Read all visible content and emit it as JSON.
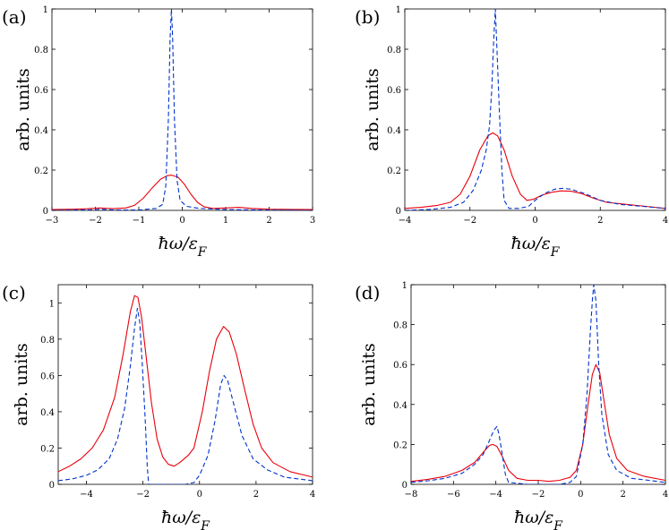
{
  "chart_data": [
    {
      "type": "line",
      "panel_label": "(a)",
      "xlabel": "ħω/ε_F",
      "ylabel": "arb. units",
      "xlim": [
        -3,
        3
      ],
      "ylim": [
        0,
        1
      ],
      "xticks": [
        "-3",
        "-2",
        "-1",
        "0",
        "1",
        "2",
        "3"
      ],
      "yticks": [
        "0",
        "0.2",
        "0.4",
        "0.6",
        "0.8",
        "1"
      ],
      "series": [
        {
          "style": "solid",
          "color": "#e8000b",
          "points": [
            [
              -3,
              0.004
            ],
            [
              -2.5,
              0.006
            ],
            [
              -2.2,
              0.008
            ],
            [
              -1.9,
              0.012
            ],
            [
              -1.6,
              0.009
            ],
            [
              -1.3,
              0.012
            ],
            [
              -1.1,
              0.025
            ],
            [
              -0.9,
              0.06
            ],
            [
              -0.7,
              0.11
            ],
            [
              -0.5,
              0.155
            ],
            [
              -0.35,
              0.172
            ],
            [
              -0.25,
              0.175
            ],
            [
              -0.1,
              0.165
            ],
            [
              0.05,
              0.13
            ],
            [
              0.2,
              0.08
            ],
            [
              0.35,
              0.04
            ],
            [
              0.5,
              0.018
            ],
            [
              0.7,
              0.01
            ],
            [
              1.0,
              0.012
            ],
            [
              1.3,
              0.015
            ],
            [
              1.6,
              0.01
            ],
            [
              2.0,
              0.006
            ],
            [
              2.5,
              0.005
            ],
            [
              3,
              0.004
            ]
          ]
        },
        {
          "style": "dashed",
          "color": "#0033cc",
          "points": [
            [
              -3,
              0.0
            ],
            [
              -2,
              0.003
            ],
            [
              -1.9,
              0.006
            ],
            [
              -1.5,
              0.002
            ],
            [
              -1,
              0.002
            ],
            [
              -0.6,
              0.01
            ],
            [
              -0.45,
              0.03
            ],
            [
              -0.38,
              0.12
            ],
            [
              -0.32,
              0.45
            ],
            [
              -0.28,
              0.85
            ],
            [
              -0.25,
              1.0
            ],
            [
              -0.22,
              0.85
            ],
            [
              -0.18,
              0.45
            ],
            [
              -0.12,
              0.15
            ],
            [
              -0.05,
              0.05
            ],
            [
              0.1,
              0.02
            ],
            [
              0.4,
              0.01
            ],
            [
              1,
              0.004
            ],
            [
              2,
              0.002
            ],
            [
              3,
              0.0
            ]
          ]
        }
      ]
    },
    {
      "type": "line",
      "panel_label": "(b)",
      "xlabel": "ħω/ε_F",
      "ylabel": "arb. units",
      "xlim": [
        -4,
        4
      ],
      "ylim": [
        0,
        1
      ],
      "xticks": [
        "-4",
        "-2",
        "0",
        "2",
        "4"
      ],
      "yticks": [
        "0",
        "0.2",
        "0.4",
        "0.6",
        "0.8",
        "1"
      ],
      "series": [
        {
          "style": "solid",
          "color": "#e8000b",
          "points": [
            [
              -4,
              0.01
            ],
            [
              -3.5,
              0.015
            ],
            [
              -3,
              0.025
            ],
            [
              -2.6,
              0.04
            ],
            [
              -2.3,
              0.08
            ],
            [
              -2,
              0.17
            ],
            [
              -1.7,
              0.3
            ],
            [
              -1.45,
              0.37
            ],
            [
              -1.3,
              0.385
            ],
            [
              -1.15,
              0.37
            ],
            [
              -0.95,
              0.3
            ],
            [
              -0.7,
              0.17
            ],
            [
              -0.45,
              0.08
            ],
            [
              -0.25,
              0.05
            ],
            [
              -0.05,
              0.055
            ],
            [
              0.2,
              0.075
            ],
            [
              0.5,
              0.09
            ],
            [
              0.8,
              0.097
            ],
            [
              1.1,
              0.095
            ],
            [
              1.4,
              0.085
            ],
            [
              1.8,
              0.06
            ],
            [
              2.2,
              0.04
            ],
            [
              2.8,
              0.03
            ],
            [
              3.4,
              0.02
            ],
            [
              4,
              0.01
            ]
          ]
        },
        {
          "style": "dashed",
          "color": "#0033cc",
          "points": [
            [
              -4,
              0.0
            ],
            [
              -3.2,
              0.005
            ],
            [
              -2.6,
              0.015
            ],
            [
              -2.2,
              0.04
            ],
            [
              -1.9,
              0.1
            ],
            [
              -1.65,
              0.2
            ],
            [
              -1.5,
              0.3
            ],
            [
              -1.4,
              0.42
            ],
            [
              -1.33,
              0.6
            ],
            [
              -1.27,
              0.85
            ],
            [
              -1.22,
              1.0
            ],
            [
              -1.17,
              0.8
            ],
            [
              -1.1,
              0.5
            ],
            [
              -1.02,
              0.2
            ],
            [
              -0.95,
              0.05
            ],
            [
              -0.8,
              0.01
            ],
            [
              -0.5,
              0.01
            ],
            [
              -0.2,
              0.02
            ],
            [
              0,
              0.05
            ],
            [
              0.3,
              0.085
            ],
            [
              0.6,
              0.105
            ],
            [
              0.85,
              0.11
            ],
            [
              1.1,
              0.105
            ],
            [
              1.5,
              0.085
            ],
            [
              2,
              0.05
            ],
            [
              2.6,
              0.03
            ],
            [
              3.3,
              0.02
            ],
            [
              4,
              0.01
            ]
          ]
        }
      ]
    },
    {
      "type": "line",
      "panel_label": "(c)",
      "xlabel": "ħω/ε_F",
      "ylabel": "arb. units",
      "xlim": [
        -5,
        4
      ],
      "ylim": [
        0,
        1.1
      ],
      "xticks": [
        "-4",
        "-2",
        "0",
        "2",
        "4"
      ],
      "yticks": [
        "0",
        "0.2",
        "0.4",
        "0.6",
        "0.8",
        "1"
      ],
      "series": [
        {
          "style": "solid",
          "color": "#e8000b",
          "points": [
            [
              -5,
              0.07
            ],
            [
              -4.6,
              0.1
            ],
            [
              -4.2,
              0.14
            ],
            [
              -3.8,
              0.2
            ],
            [
              -3.4,
              0.3
            ],
            [
              -3,
              0.48
            ],
            [
              -2.7,
              0.72
            ],
            [
              -2.45,
              0.95
            ],
            [
              -2.3,
              1.04
            ],
            [
              -2.18,
              1.03
            ],
            [
              -2.05,
              0.92
            ],
            [
              -1.9,
              0.72
            ],
            [
              -1.7,
              0.45
            ],
            [
              -1.5,
              0.25
            ],
            [
              -1.3,
              0.15
            ],
            [
              -1.1,
              0.11
            ],
            [
              -0.9,
              0.1
            ],
            [
              -0.7,
              0.12
            ],
            [
              -0.4,
              0.16
            ],
            [
              -0.2,
              0.2
            ],
            [
              0.1,
              0.4
            ],
            [
              0.35,
              0.62
            ],
            [
              0.6,
              0.8
            ],
            [
              0.85,
              0.87
            ],
            [
              1.05,
              0.84
            ],
            [
              1.3,
              0.72
            ],
            [
              1.6,
              0.52
            ],
            [
              1.9,
              0.33
            ],
            [
              2.2,
              0.2
            ],
            [
              2.6,
              0.12
            ],
            [
              3.2,
              0.07
            ],
            [
              4,
              0.04
            ]
          ]
        },
        {
          "style": "dashed",
          "color": "#0033cc",
          "points": [
            [
              -5,
              0.02
            ],
            [
              -4.5,
              0.03
            ],
            [
              -4,
              0.05
            ],
            [
              -3.6,
              0.08
            ],
            [
              -3.2,
              0.14
            ],
            [
              -2.9,
              0.25
            ],
            [
              -2.65,
              0.42
            ],
            [
              -2.45,
              0.65
            ],
            [
              -2.3,
              0.86
            ],
            [
              -2.2,
              0.97
            ],
            [
              -2.12,
              0.9
            ],
            [
              -2.02,
              0.65
            ],
            [
              -1.92,
              0.35
            ],
            [
              -1.85,
              0.1
            ],
            [
              -1.8,
              0.0
            ],
            [
              -0.5,
              0.0
            ],
            [
              -0.2,
              0.01
            ],
            [
              0,
              0.05
            ],
            [
              0.3,
              0.16
            ],
            [
              0.55,
              0.35
            ],
            [
              0.75,
              0.55
            ],
            [
              0.87,
              0.6
            ],
            [
              1,
              0.57
            ],
            [
              1.2,
              0.45
            ],
            [
              1.5,
              0.27
            ],
            [
              1.9,
              0.14
            ],
            [
              2.4,
              0.08
            ],
            [
              3,
              0.04
            ],
            [
              4,
              0.02
            ]
          ]
        }
      ]
    },
    {
      "type": "line",
      "panel_label": "(d)",
      "xlabel": "ħω/ε_F",
      "ylabel": "arb. units",
      "xlim": [
        -8,
        4
      ],
      "ylim": [
        0,
        1
      ],
      "xticks": [
        "-8",
        "-6",
        "-4",
        "-2",
        "0",
        "2",
        "4"
      ],
      "yticks": [
        "0",
        "0.2",
        "0.4",
        "0.6",
        "0.8",
        "1"
      ],
      "series": [
        {
          "style": "solid",
          "color": "#e8000b",
          "points": [
            [
              -8,
              0.015
            ],
            [
              -7.2,
              0.025
            ],
            [
              -6.4,
              0.04
            ],
            [
              -5.6,
              0.07
            ],
            [
              -5,
              0.11
            ],
            [
              -4.6,
              0.16
            ],
            [
              -4.3,
              0.195
            ],
            [
              -4.15,
              0.2
            ],
            [
              -3.95,
              0.19
            ],
            [
              -3.7,
              0.14
            ],
            [
              -3.4,
              0.07
            ],
            [
              -3,
              0.03
            ],
            [
              -2.5,
              0.02
            ],
            [
              -2,
              0.02
            ],
            [
              -1.5,
              0.015
            ],
            [
              -1,
              0.02
            ],
            [
              -0.5,
              0.035
            ],
            [
              -0.2,
              0.07
            ],
            [
              0.1,
              0.2
            ],
            [
              0.35,
              0.4
            ],
            [
              0.55,
              0.55
            ],
            [
              0.72,
              0.6
            ],
            [
              0.9,
              0.56
            ],
            [
              1.1,
              0.42
            ],
            [
              1.35,
              0.25
            ],
            [
              1.7,
              0.13
            ],
            [
              2.2,
              0.07
            ],
            [
              3,
              0.04
            ],
            [
              4,
              0.02
            ]
          ]
        },
        {
          "style": "dashed",
          "color": "#0033cc",
          "points": [
            [
              -8,
              0.01
            ],
            [
              -7.2,
              0.018
            ],
            [
              -6.4,
              0.03
            ],
            [
              -5.6,
              0.055
            ],
            [
              -5,
              0.1
            ],
            [
              -4.6,
              0.15
            ],
            [
              -4.3,
              0.22
            ],
            [
              -4.1,
              0.27
            ],
            [
              -3.95,
              0.29
            ],
            [
              -3.85,
              0.25
            ],
            [
              -3.7,
              0.15
            ],
            [
              -3.55,
              0.05
            ],
            [
              -3.4,
              0.01
            ],
            [
              -2.5,
              0.0
            ],
            [
              -1,
              0.0
            ],
            [
              -0.5,
              0.01
            ],
            [
              -0.2,
              0.04
            ],
            [
              0.1,
              0.2
            ],
            [
              0.3,
              0.45
            ],
            [
              0.45,
              0.75
            ],
            [
              0.55,
              0.92
            ],
            [
              0.62,
              1.0
            ],
            [
              0.72,
              0.92
            ],
            [
              0.85,
              0.6
            ],
            [
              1.0,
              0.35
            ],
            [
              1.3,
              0.15
            ],
            [
              1.7,
              0.07
            ],
            [
              2.4,
              0.03
            ],
            [
              3.2,
              0.02
            ],
            [
              4,
              0.01
            ]
          ]
        }
      ]
    }
  ]
}
